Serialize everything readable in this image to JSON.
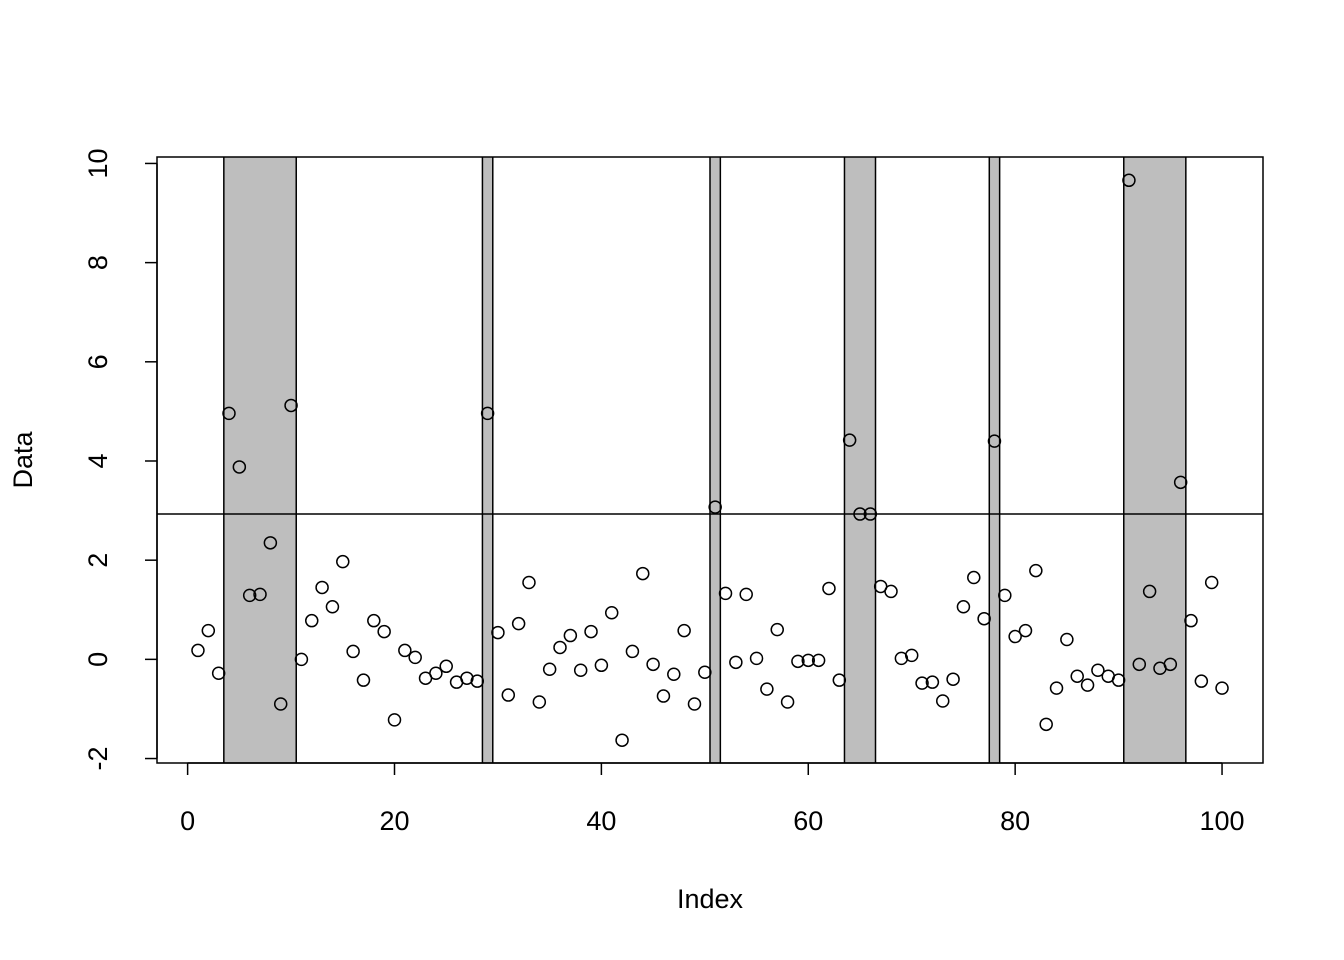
{
  "chart_data": {
    "type": "scatter",
    "xlabel": "Index",
    "ylabel": "Data",
    "x": [
      1,
      2,
      3,
      4,
      5,
      6,
      7,
      8,
      9,
      10,
      11,
      12,
      13,
      14,
      15,
      16,
      17,
      18,
      19,
      20,
      21,
      22,
      23,
      24,
      25,
      26,
      27,
      28,
      29,
      30,
      31,
      32,
      33,
      34,
      35,
      36,
      37,
      38,
      39,
      40,
      41,
      42,
      43,
      44,
      45,
      46,
      47,
      48,
      49,
      50,
      51,
      52,
      53,
      54,
      55,
      56,
      57,
      58,
      59,
      60,
      61,
      62,
      63,
      64,
      65,
      66,
      67,
      68,
      69,
      70,
      71,
      72,
      73,
      74,
      75,
      76,
      77,
      78,
      79,
      80,
      81,
      82,
      83,
      84,
      85,
      86,
      87,
      88,
      89,
      90,
      91,
      92,
      93,
      94,
      95,
      96,
      97,
      98,
      99,
      100
    ],
    "values": [
      0.18,
      0.58,
      -0.28,
      4.96,
      3.88,
      1.29,
      1.31,
      2.35,
      -0.9,
      5.12,
      0.0,
      0.78,
      1.45,
      1.06,
      1.97,
      0.16,
      -0.42,
      0.78,
      0.56,
      -1.22,
      0.18,
      0.04,
      -0.38,
      -0.28,
      -0.14,
      -0.46,
      -0.38,
      -0.44,
      4.96,
      0.54,
      -0.72,
      0.72,
      1.55,
      -0.86,
      -0.2,
      0.24,
      0.48,
      -0.22,
      0.56,
      -0.12,
      0.94,
      -1.63,
      0.16,
      1.73,
      -0.1,
      -0.74,
      -0.3,
      0.58,
      -0.9,
      -0.26,
      3.07,
      1.33,
      -0.06,
      1.31,
      0.02,
      -0.6,
      0.6,
      -0.86,
      -0.04,
      -0.02,
      -0.02,
      1.43,
      -0.42,
      4.42,
      2.93,
      2.93,
      1.47,
      1.37,
      0.02,
      0.08,
      -0.48,
      -0.46,
      -0.84,
      -0.4,
      1.06,
      1.65,
      0.82,
      4.4,
      1.29,
      0.46,
      0.58,
      1.79,
      -1.31,
      -0.58,
      0.4,
      -0.34,
      -0.52,
      -0.22,
      -0.34,
      -0.42,
      9.66,
      -0.1,
      1.37,
      -0.18,
      -0.1,
      3.57,
      0.78,
      -0.44,
      1.55,
      -0.58
    ],
    "color": "#000000",
    "shaded_regions": [
      [
        3.5,
        10.5
      ],
      [
        28.5,
        29.5
      ],
      [
        50.5,
        51.5
      ],
      [
        63.5,
        66.5
      ],
      [
        77.5,
        78.5
      ],
      [
        90.5,
        96.5
      ]
    ],
    "region_color": "#bebebe",
    "hline": 2.93,
    "xlim": [
      -2.96,
      103.96
    ],
    "ylim": [
      -2.09,
      10.13
    ],
    "xticks": [
      0,
      20,
      40,
      60,
      80,
      100
    ],
    "yticks": [
      -2,
      0,
      2,
      4,
      6,
      8,
      10
    ]
  }
}
